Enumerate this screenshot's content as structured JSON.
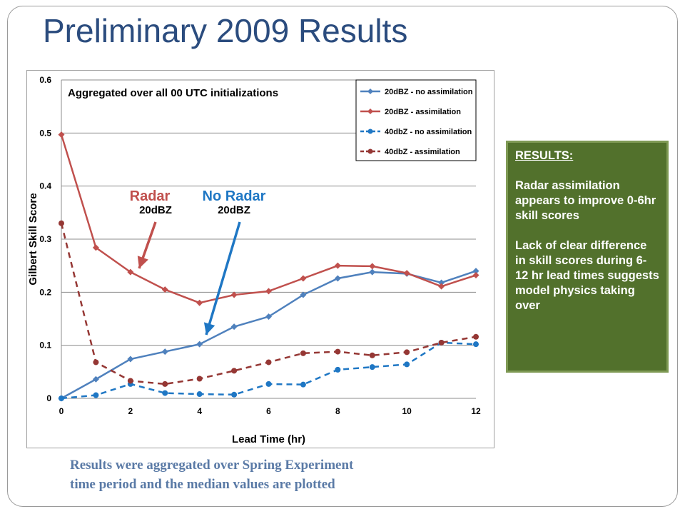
{
  "slide": {
    "title": "Preliminary 2009 Results",
    "results_box": {
      "heading": "RESULTS:",
      "paragraphs": [
        "Radar assimilation appears to improve 0-6hr skill scores",
        "Lack of clear difference in skill scores during 6-12 hr lead times suggests model physics taking over"
      ],
      "background_color": "#52712c"
    },
    "caption": {
      "line1": "Results were aggregated over Spring Experiment",
      "line2": "time period and the median values are plotted"
    }
  },
  "chart_data": {
    "type": "line",
    "title": "Aggregated over all 00 UTC initializations",
    "xlabel": "Lead Time (hr)",
    "ylabel": "Gilbert Skill Score",
    "xlim": [
      0,
      12
    ],
    "ylim": [
      0,
      0.6
    ],
    "x_ticks": [
      "0",
      "2",
      "4",
      "6",
      "8",
      "10",
      "12"
    ],
    "y_ticks": [
      "0",
      "0.1",
      "0.2",
      "0.3",
      "0.4",
      "0.5",
      "0.6"
    ],
    "grid": true,
    "legend_position": "top-right",
    "x": [
      0,
      1,
      2,
      3,
      4,
      5,
      6,
      7,
      8,
      9,
      10,
      11,
      12
    ],
    "series": [
      {
        "name": "20dBZ - no assimilation",
        "color": "#4f81bd",
        "dashed": false,
        "marker": "diamond",
        "values": [
          0.0,
          0.036,
          0.074,
          0.088,
          0.102,
          0.135,
          0.154,
          0.195,
          0.226,
          0.238,
          0.235,
          0.218,
          0.24
        ]
      },
      {
        "name": "20dBZ - assimilation",
        "color": "#c0504d",
        "dashed": false,
        "marker": "diamond",
        "values": [
          0.497,
          0.284,
          0.238,
          0.205,
          0.18,
          0.195,
          0.202,
          0.226,
          0.25,
          0.249,
          0.236,
          0.211,
          0.232
        ]
      },
      {
        "name": "40dbZ - no assimilation",
        "color": "#1f77c4",
        "dashed": true,
        "marker": "circle",
        "values": [
          0.0,
          0.006,
          0.027,
          0.01,
          0.008,
          0.007,
          0.027,
          0.026,
          0.054,
          0.059,
          0.064,
          0.105,
          0.102
        ]
      },
      {
        "name": "40dbZ - assimilation",
        "color": "#953734",
        "dashed": true,
        "marker": "circle",
        "values": [
          0.33,
          0.068,
          0.033,
          0.027,
          0.037,
          0.052,
          0.068,
          0.085,
          0.088,
          0.081,
          0.087,
          0.105,
          0.116
        ]
      }
    ],
    "annotations": [
      {
        "label": "Radar",
        "sublabel": "20dBZ",
        "color": "#c0504d",
        "sublabel_color": "#000000",
        "points_to_x": 2
      },
      {
        "label": "No Radar",
        "sublabel": "20dBZ",
        "color": "#1f77c4",
        "sublabel_color": "#000000",
        "points_to_x": 4
      }
    ]
  }
}
